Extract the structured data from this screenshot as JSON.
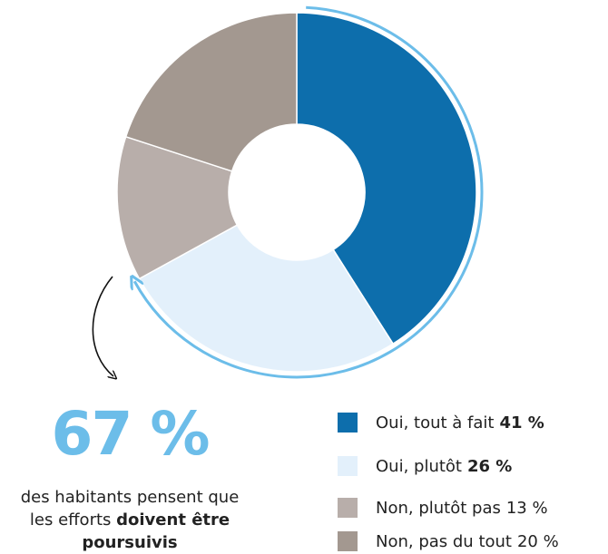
{
  "chart_data": {
    "type": "pie",
    "categories": [
      "Oui, tout à fait",
      "Oui, plutôt",
      "Non, plutôt pas",
      "Non, pas du tout"
    ],
    "values": [
      41,
      26,
      13,
      20
    ],
    "value_labels": [
      "41 %",
      "26 %",
      "13 %",
      "20 %"
    ],
    "colors": [
      "#0d6eac",
      "#e3f0fb",
      "#b8aeaa",
      "#a39890"
    ],
    "bold_labels": [
      true,
      true,
      false,
      false
    ],
    "annotation": {
      "value": 67,
      "label": "67 %",
      "text": "des habitants pensent que les efforts",
      "emphasis": "doivent être poursuivis",
      "color": "#6cbde9"
    }
  }
}
